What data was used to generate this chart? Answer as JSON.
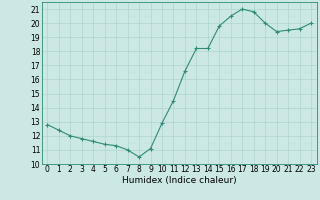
{
  "x": [
    0,
    1,
    2,
    3,
    4,
    5,
    6,
    7,
    8,
    9,
    10,
    11,
    12,
    13,
    14,
    15,
    16,
    17,
    18,
    19,
    20,
    21,
    22,
    23
  ],
  "y": [
    12.8,
    12.4,
    12.0,
    11.8,
    11.6,
    11.4,
    11.3,
    11.0,
    10.5,
    11.1,
    12.9,
    14.5,
    16.6,
    18.2,
    18.2,
    19.8,
    20.5,
    21.0,
    20.8,
    20.0,
    19.4,
    19.5,
    19.6,
    20.0
  ],
  "xlabel": "Humidex (Indice chaleur)",
  "line_color": "#2e8b74",
  "marker": "+",
  "bg_color": "#cce8e4",
  "grid_color": "#b0d4d0",
  "xlim": [
    -0.5,
    23.5
  ],
  "ylim": [
    10,
    21.5
  ],
  "yticks": [
    10,
    11,
    12,
    13,
    14,
    15,
    16,
    17,
    18,
    19,
    20,
    21
  ],
  "xticks": [
    0,
    1,
    2,
    3,
    4,
    5,
    6,
    7,
    8,
    9,
    10,
    11,
    12,
    13,
    14,
    15,
    16,
    17,
    18,
    19,
    20,
    21,
    22,
    23
  ],
  "tick_fontsize": 5.5,
  "xlabel_fontsize": 6.5
}
